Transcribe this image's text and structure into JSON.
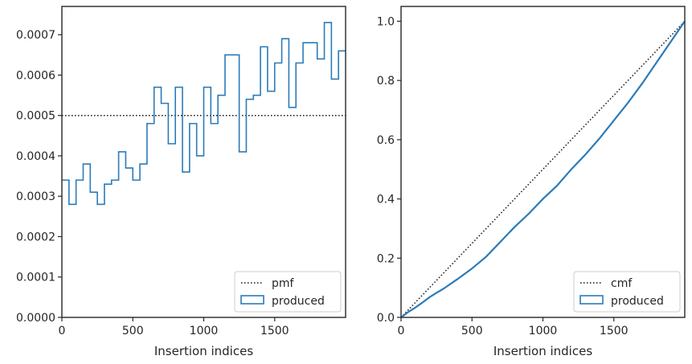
{
  "chart_data": [
    {
      "type": "histogram",
      "xlabel": "Insertion indices",
      "ylabel": "",
      "xlim": [
        0,
        2000
      ],
      "ylim": [
        0,
        0.00077
      ],
      "x_ticks": [
        0,
        500,
        1000,
        1500
      ],
      "x_tick_labels": [
        "0",
        "500",
        "1000",
        "1500"
      ],
      "y_ticks": [
        0,
        0.0001,
        0.0002,
        0.0003,
        0.0004,
        0.0005,
        0.0006,
        0.0007
      ],
      "y_tick_labels": [
        "0.0000",
        "0.0001",
        "0.0002",
        "0.0003",
        "0.0004",
        "0.0005",
        "0.0006",
        "0.0007"
      ],
      "grid": false,
      "legend_position": "lower-right",
      "bin_width": 50,
      "bin_starts": [
        0,
        50,
        100,
        150,
        200,
        250,
        300,
        350,
        400,
        450,
        500,
        550,
        600,
        650,
        700,
        750,
        800,
        850,
        900,
        950,
        1000,
        1050,
        1100,
        1150,
        1200,
        1250,
        1300,
        1350,
        1400,
        1450,
        1500,
        1550,
        1600,
        1650,
        1700,
        1750,
        1800,
        1850,
        1900,
        1950
      ],
      "series": [
        {
          "name": "pmf",
          "style": "dotted",
          "color": "#111111",
          "values": [
            0.0005
          ]
        },
        {
          "name": "produced",
          "style": "step",
          "color": "#2b7bb9",
          "values": [
            0.00034,
            0.00028,
            0.00034,
            0.00038,
            0.00031,
            0.00028,
            0.00033,
            0.00034,
            0.00041,
            0.00037,
            0.00034,
            0.00038,
            0.00048,
            0.00057,
            0.00053,
            0.00043,
            0.00057,
            0.00036,
            0.00048,
            0.0004,
            0.00057,
            0.00048,
            0.00055,
            0.00065,
            0.00065,
            0.00041,
            0.00054,
            0.00055,
            0.00067,
            0.00056,
            0.00063,
            0.00069,
            0.00052,
            0.00063,
            0.00068,
            0.00068,
            0.00064,
            0.00073,
            0.00059,
            0.00066
          ]
        }
      ]
    },
    {
      "type": "line",
      "xlabel": "Insertion indices",
      "ylabel": "",
      "xlim": [
        0,
        2000
      ],
      "ylim": [
        0,
        1.05
      ],
      "x_ticks": [
        0,
        500,
        1000,
        1500
      ],
      "x_tick_labels": [
        "0",
        "500",
        "1000",
        "1500"
      ],
      "y_ticks": [
        0,
        0.2,
        0.4,
        0.6,
        0.8,
        1.0
      ],
      "y_tick_labels": [
        "0.0",
        "0.2",
        "0.4",
        "0.6",
        "0.8",
        "1.0"
      ],
      "grid": false,
      "legend_position": "lower-right",
      "series": [
        {
          "name": "cmf",
          "style": "dotted",
          "color": "#111111",
          "x": [
            0,
            2000
          ],
          "y": [
            0,
            1.0
          ]
        },
        {
          "name": "produced",
          "style": "solid",
          "color": "#2b7bb9",
          "x": [
            0,
            50,
            100,
            150,
            200,
            250,
            300,
            400,
            500,
            600,
            700,
            800,
            900,
            1000,
            1100,
            1200,
            1300,
            1400,
            1500,
            1600,
            1700,
            1800,
            1900,
            2000
          ],
          "y": [
            0,
            0.018,
            0.033,
            0.05,
            0.068,
            0.083,
            0.097,
            0.13,
            0.165,
            0.205,
            0.255,
            0.305,
            0.35,
            0.4,
            0.445,
            0.5,
            0.55,
            0.605,
            0.665,
            0.725,
            0.79,
            0.86,
            0.93,
            1.0
          ]
        }
      ]
    }
  ]
}
